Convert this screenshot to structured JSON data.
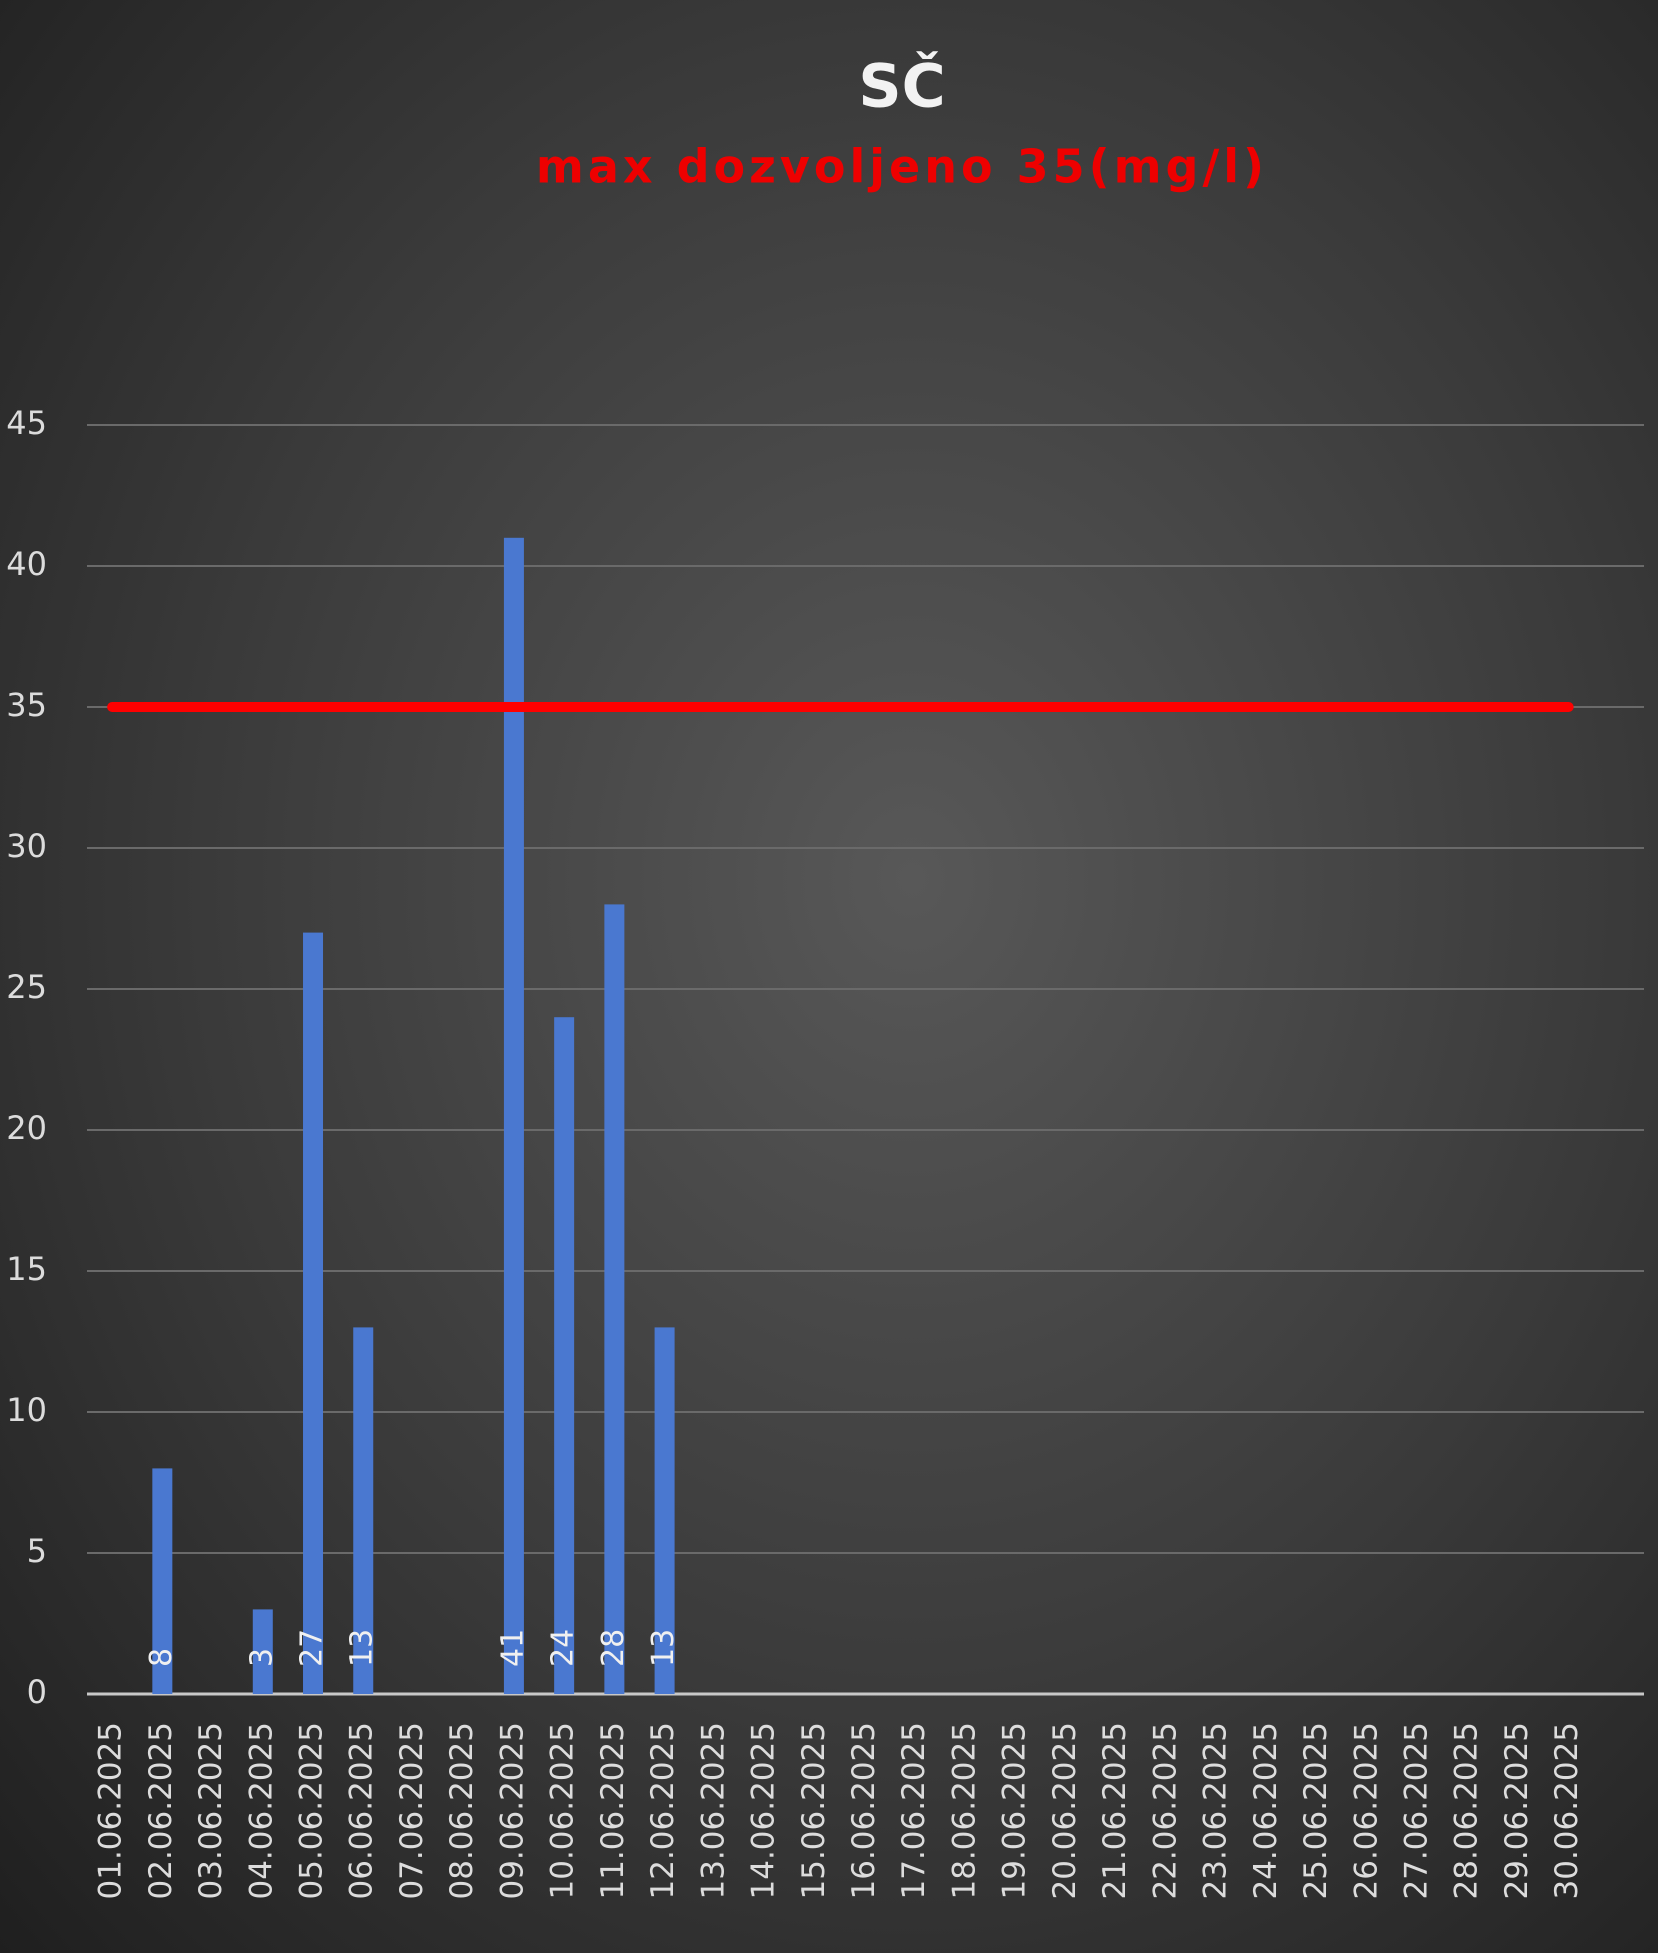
{
  "chart_data": {
    "type": "bar",
    "title": "SČ",
    "subtitle": "max dozvoljeno 35(mg/l)",
    "categories": [
      "01.06.2025",
      "02.06.2025",
      "03.06.2025",
      "04.06.2025",
      "05.06.2025",
      "06.06.2025",
      "07.06.2025",
      "08.06.2025",
      "09.06.2025",
      "10.06.2025",
      "11.06.2025",
      "12.06.2025",
      "13.06.2025",
      "14.06.2025",
      "15.06.2025",
      "16.06.2025",
      "17.06.2025",
      "18.06.2025",
      "19.06.2025",
      "20.06.2025",
      "21.06.2025",
      "22.06.2025",
      "23.06.2025",
      "24.06.2025",
      "25.06.2025",
      "26.06.2025",
      "27.06.2025",
      "28.06.2025",
      "29.06.2025",
      "30.06.2025"
    ],
    "values": [
      null,
      8,
      null,
      3,
      27,
      13,
      null,
      null,
      41,
      24,
      28,
      13,
      null,
      null,
      null,
      null,
      null,
      null,
      null,
      null,
      null,
      null,
      null,
      null,
      null,
      null,
      null,
      null,
      null,
      null
    ],
    "color": "#4a78d0",
    "reference_line": {
      "value": 35,
      "color": "#ff0000"
    },
    "ylim": [
      0,
      45
    ],
    "yticks": [
      0,
      5,
      10,
      15,
      20,
      25,
      30,
      35,
      40,
      45
    ],
    "grid": true
  }
}
